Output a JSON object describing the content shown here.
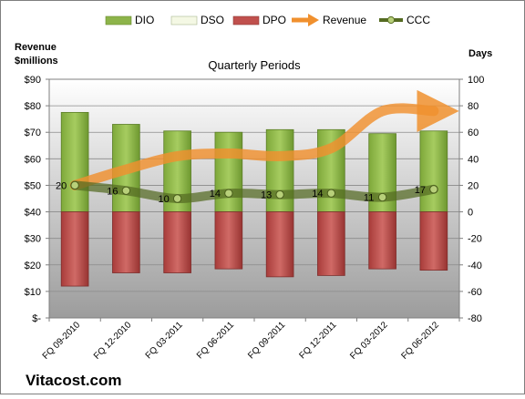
{
  "chart_data": {
    "type": "bar",
    "title": "Quarterly Periods",
    "left_axis_label": [
      "Revenue",
      "$millions"
    ],
    "right_axis_label": "Days",
    "footer": "Vitacost.com",
    "categories": [
      "FQ 09-2010",
      "FQ 12-2010",
      "FQ 03-2011",
      "FQ 06-2011",
      "FQ 09-2011",
      "FQ 12-2011",
      "FQ 03-2012",
      "FQ 06-2012"
    ],
    "left_axis": {
      "ylim": [
        0,
        90
      ],
      "ticks": [
        0,
        10,
        20,
        30,
        40,
        50,
        60,
        70,
        80,
        90
      ],
      "tick_labels": [
        "$-",
        "$10",
        "$20",
        "$30",
        "$40",
        "$50",
        "$60",
        "$70",
        "$80",
        "$90"
      ]
    },
    "right_axis": {
      "ylim": [
        -80,
        100
      ],
      "ticks": [
        -80,
        -60,
        -40,
        -20,
        0,
        20,
        40,
        60,
        80,
        100
      ],
      "tick_labels": [
        "-80",
        "-60",
        "-40",
        "-20",
        "0",
        "20",
        "40",
        "60",
        "80",
        "100"
      ]
    },
    "legend_position": "top",
    "grid": true,
    "series": [
      {
        "name": "DIO",
        "kind": "bar",
        "axis": "right",
        "color": "#8db44a",
        "values": [
          75,
          66,
          61,
          60,
          62,
          62,
          59,
          61
        ]
      },
      {
        "name": "DSO",
        "kind": "bar",
        "axis": "right",
        "color": "#f4f8e4",
        "values": [
          0,
          0,
          0,
          0,
          0,
          0,
          0,
          0
        ]
      },
      {
        "name": "DPO",
        "kind": "bar",
        "axis": "right",
        "color": "#c0504d",
        "values": [
          -56,
          -46,
          -46,
          -43,
          -49,
          -48,
          -43,
          -44
        ]
      },
      {
        "name": "Revenue",
        "kind": "line",
        "axis": "left",
        "color": "#f0902e",
        "values": [
          50,
          56,
          61,
          62,
          61,
          64,
          78,
          78
        ]
      },
      {
        "name": "CCC",
        "kind": "line",
        "axis": "right",
        "color": "#556b22",
        "values": [
          20,
          16,
          10,
          14,
          13,
          14,
          11,
          17
        ],
        "labels": [
          "20",
          "16",
          "10",
          "14",
          "13",
          "14",
          "11",
          "17"
        ]
      }
    ]
  }
}
